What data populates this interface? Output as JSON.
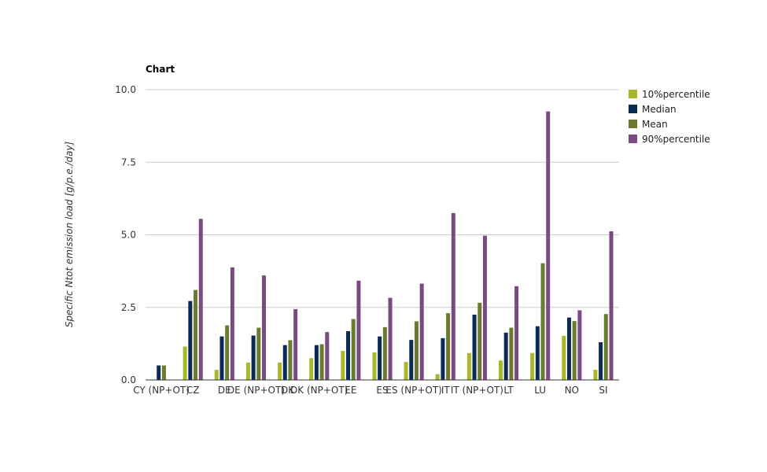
{
  "chart_data": {
    "type": "bar",
    "title": "Chart",
    "xlabel": "",
    "ylabel": "Specific Ntot emission load [g/p.e./day]",
    "ylim": [
      0,
      10
    ],
    "yticks": [
      "0.0",
      "2.5",
      "5.0",
      "7.5",
      "10.0"
    ],
    "grid": true,
    "legend_position": "right",
    "categories": [
      "CY (NP+OT)",
      "CZ",
      "DE",
      "DE (NP+OT)",
      "DK",
      "DK (NP+OT)",
      "EE",
      "ES",
      "ES (NP+OT)",
      "IT",
      "IT (NP+OT)",
      "LT",
      "LU",
      "NO",
      "SI"
    ],
    "series": [
      {
        "name": "10%percentile",
        "color": "#a8b82a",
        "values": [
          0,
          1.15,
          0.35,
          0.6,
          0.6,
          0.75,
          1.0,
          0.95,
          0.62,
          0.2,
          0.93,
          0.67,
          0.93,
          1.52,
          0.35
        ]
      },
      {
        "name": "Median",
        "color": "#0b2a55",
        "values": [
          0.5,
          2.72,
          1.5,
          1.53,
          1.2,
          1.2,
          1.68,
          1.5,
          1.38,
          1.44,
          2.25,
          1.63,
          1.85,
          2.15,
          1.3
        ]
      },
      {
        "name": "Mean",
        "color": "#6b7a2e",
        "values": [
          0.5,
          3.1,
          1.88,
          1.8,
          1.37,
          1.23,
          2.1,
          1.82,
          2.02,
          2.3,
          2.66,
          1.8,
          4.02,
          2.03,
          2.27
        ]
      },
      {
        "name": "90%percentile",
        "color": "#7b4a82",
        "values": [
          0,
          5.55,
          3.88,
          3.6,
          2.44,
          1.65,
          3.42,
          2.83,
          3.32,
          5.75,
          4.97,
          3.23,
          9.25,
          2.4,
          5.12
        ]
      }
    ]
  }
}
